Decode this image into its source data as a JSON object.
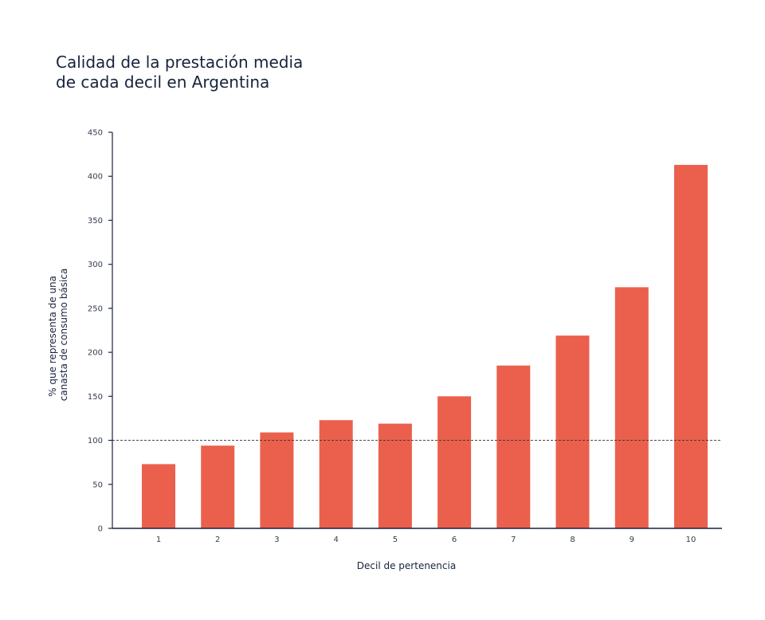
{
  "title": {
    "line1": "Calidad de la prestación media",
    "line2": "de cada decil en Argentina"
  },
  "colors": {
    "bar": "#ea604d",
    "axis": "#17243b",
    "reference_line": "#333333"
  },
  "chart_data": {
    "type": "bar",
    "title": "Calidad de la prestación media de cada decil en Argentina",
    "xlabel": "Decil de pertenencia",
    "ylabel_lines": [
      "% que representa de una",
      "canasta de consumo básica"
    ],
    "categories": [
      "1",
      "2",
      "3",
      "4",
      "5",
      "6",
      "7",
      "8",
      "9",
      "10"
    ],
    "values": [
      73,
      94,
      109,
      123,
      119,
      150,
      185,
      219,
      274,
      413
    ],
    "ylim": [
      0,
      450
    ],
    "yticks": [
      0,
      50,
      100,
      150,
      200,
      250,
      300,
      350,
      400,
      450
    ],
    "reference_line": 100,
    "grid": false
  }
}
